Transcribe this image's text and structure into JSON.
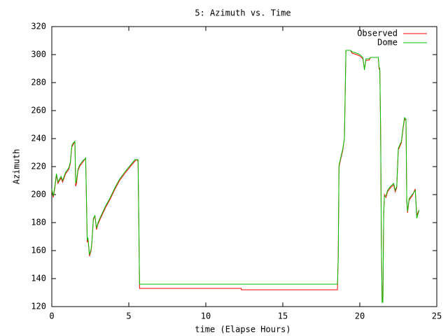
{
  "chart_data": {
    "type": "line",
    "title": "5: Azimuth vs. Time",
    "x_label": "time (Elapse Hours)",
    "y_label": "Azimuth",
    "x": [
      0,
      0.1,
      0.2,
      0.3,
      0.4,
      0.6,
      0.7,
      0.9,
      1.1,
      1.2,
      1.3,
      1.4,
      1.5,
      1.55,
      1.6,
      1.7,
      1.8,
      2.0,
      2.2,
      2.3,
      2.35,
      2.45,
      2.55,
      2.6,
      2.7,
      2.8,
      2.9,
      3.0,
      3.2,
      3.5,
      3.8,
      4.1,
      4.4,
      4.8,
      5.1,
      5.4,
      5.5,
      5.6,
      5.65,
      5.7,
      12.3,
      12.31,
      18.55,
      18.6,
      18.65,
      18.9,
      19.0,
      19.1,
      19.4,
      19.5,
      19.8,
      20.0,
      20.2,
      20.3,
      20.4,
      20.6,
      20.7,
      21.2,
      21.25,
      21.3,
      21.35,
      21.4,
      21.45,
      21.5,
      21.55,
      21.6,
      21.7,
      21.8,
      22.0,
      22.2,
      22.3,
      22.4,
      22.5,
      22.7,
      22.8,
      22.9,
      23.0,
      23.05,
      23.1,
      23.2,
      23.4,
      23.6,
      23.7,
      23.8,
      23.85
    ],
    "series": [
      {
        "name": "Observed",
        "color": "#ff0000",
        "values": [
          203,
          198,
          205,
          214,
          208,
          212,
          209,
          215,
          218,
          222,
          234,
          236,
          238,
          206,
          208,
          217,
          220,
          223,
          226,
          166,
          168,
          156,
          160,
          165,
          182,
          185,
          175,
          179,
          184,
          191,
          197,
          204,
          210,
          216,
          220,
          224,
          225,
          224,
          180,
          133,
          133,
          132,
          132,
          157,
          220,
          232,
          240,
          303,
          303,
          301,
          300,
          299,
          297,
          290,
          296,
          296,
          298,
          298,
          290,
          289,
          248,
          166,
          124,
          124,
          185,
          200,
          198,
          202,
          205,
          207,
          202,
          205,
          232,
          237,
          246,
          254,
          253,
          195,
          187,
          196,
          199,
          204,
          185,
          188,
          188
        ]
      },
      {
        "name": "Dome",
        "color": "#00c000",
        "values": [
          204,
          199,
          206,
          215,
          209,
          213,
          210,
          216,
          219,
          223,
          235,
          237,
          238,
          208,
          210,
          218,
          221,
          224,
          226,
          168,
          169,
          157,
          161,
          166,
          183,
          185,
          176,
          180,
          185,
          192,
          198,
          205,
          211,
          217,
          221,
          225,
          225,
          225,
          182,
          136,
          136,
          136,
          136,
          154,
          221,
          233,
          240,
          303,
          303,
          302,
          301,
          300,
          298,
          289,
          297,
          297,
          298,
          298,
          291,
          290,
          249,
          164,
          123,
          123,
          186,
          199,
          199,
          203,
          206,
          208,
          203,
          206,
          233,
          238,
          247,
          255,
          254,
          196,
          188,
          197,
          200,
          203,
          183,
          187,
          189
        ]
      }
    ],
    "xlim": [
      0,
      25
    ],
    "xticks": [
      0,
      5,
      10,
      15,
      20,
      25
    ],
    "ylim": [
      120,
      320
    ],
    "yticks": [
      120,
      140,
      160,
      180,
      200,
      220,
      240,
      260,
      280,
      300,
      320
    ],
    "legend_position": "top-right"
  }
}
